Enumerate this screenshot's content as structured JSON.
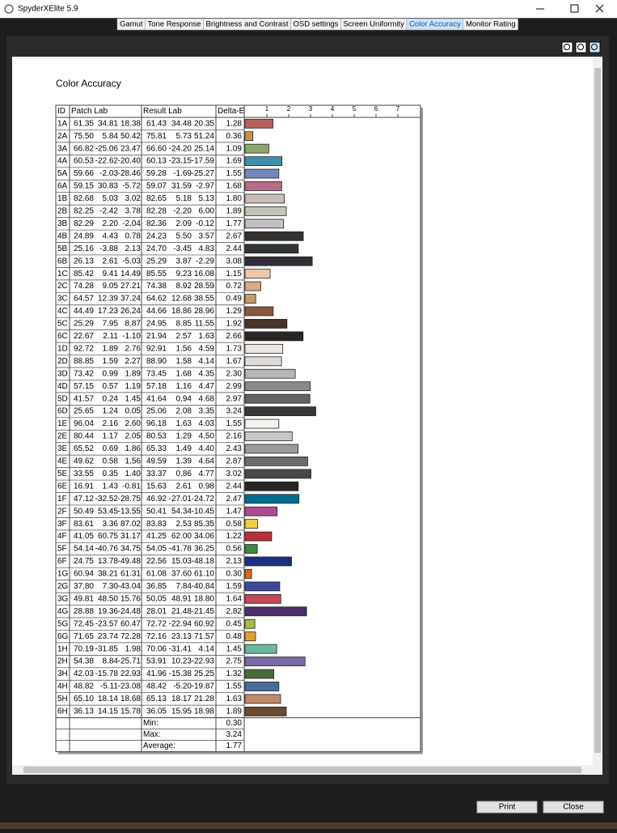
{
  "window": {
    "title": "SpyderXElite 5.9"
  },
  "tabs": [
    "Gamut",
    "Tone Response",
    "Brightness and Contrast",
    "OSD settings",
    "Screen Uniformity",
    "Color Accuracy",
    "Monitor Rating"
  ],
  "active_tab": 5,
  "report": {
    "title": "Color Accuracy"
  },
  "table": {
    "headers": [
      "ID",
      "Patch Lab",
      "Result Lab",
      "Delta-E"
    ],
    "delta_e_ticks": [
      1,
      2,
      3,
      4,
      5,
      6,
      7
    ],
    "rows": [
      [
        "1A",
        [
          "61.35",
          "34.81",
          "18.38"
        ],
        [
          "61.43",
          "34.48",
          "20.35"
        ],
        "1.28"
      ],
      [
        "2A",
        [
          "75.50",
          "5.84",
          "50.42"
        ],
        [
          "75.81",
          "5.73",
          "51.24"
        ],
        "0.36"
      ],
      [
        "3A",
        [
          "66.82",
          "-25.06",
          "23.47"
        ],
        [
          "66.60",
          "-24.20",
          "25.14"
        ],
        "1.09"
      ],
      [
        "4A",
        [
          "60.53",
          "-22.62",
          "-20.40"
        ],
        [
          "60.13",
          "-23.15",
          "-17.59"
        ],
        "1.69"
      ],
      [
        "5A",
        [
          "59.66",
          "-2.03",
          "-28.46"
        ],
        [
          "59.28",
          "-1.69",
          "-25.27"
        ],
        "1.55"
      ],
      [
        "6A",
        [
          "59.15",
          "30.83",
          "-5.72"
        ],
        [
          "59.07",
          "31.59",
          "-2.97"
        ],
        "1.68"
      ],
      [
        "1B",
        [
          "82.68",
          "5.03",
          "3.02"
        ],
        [
          "82.65",
          "5.18",
          "5.13"
        ],
        "1.80"
      ],
      [
        "2B",
        [
          "82.25",
          "-2.42",
          "3.78"
        ],
        [
          "82.28",
          "-2.20",
          "6.00"
        ],
        "1.89"
      ],
      [
        "3B",
        [
          "82.29",
          "2.20",
          "-2.04"
        ],
        [
          "82.36",
          "2.09",
          "-0.12"
        ],
        "1.77"
      ],
      [
        "4B",
        [
          "24.89",
          "4.43",
          "0.78"
        ],
        [
          "24.23",
          "5.50",
          "3.57"
        ],
        "2.67"
      ],
      [
        "5B",
        [
          "25.16",
          "-3.88",
          "2.13"
        ],
        [
          "24.70",
          "-3.45",
          "4.83"
        ],
        "2.44"
      ],
      [
        "6B",
        [
          "26.13",
          "2.61",
          "-5.03"
        ],
        [
          "25.29",
          "3.87",
          "-2.29"
        ],
        "3.08"
      ],
      [
        "1C",
        [
          "85.42",
          "9.41",
          "14.49"
        ],
        [
          "85.55",
          "9.23",
          "16.08"
        ],
        "1.15"
      ],
      [
        "2C",
        [
          "74.28",
          "9.05",
          "27.21"
        ],
        [
          "74.38",
          "8.92",
          "28.59"
        ],
        "0.72"
      ],
      [
        "3C",
        [
          "64.57",
          "12.39",
          "37.24"
        ],
        [
          "64.62",
          "12.68",
          "38.55"
        ],
        "0.49"
      ],
      [
        "4C",
        [
          "44.49",
          "17.23",
          "26.24"
        ],
        [
          "44.66",
          "18.86",
          "28.96"
        ],
        "1.29"
      ],
      [
        "5C",
        [
          "25.29",
          "7.95",
          "8.87"
        ],
        [
          "24.95",
          "8.85",
          "11.55"
        ],
        "1.92"
      ],
      [
        "6C",
        [
          "22.67",
          "2.11",
          "-1.10"
        ],
        [
          "21.94",
          "2.57",
          "1.63"
        ],
        "2.66"
      ],
      [
        "1D",
        [
          "92.72",
          "1.89",
          "2.76"
        ],
        [
          "92.91",
          "1.56",
          "4.59"
        ],
        "1.73"
      ],
      [
        "2D",
        [
          "88.85",
          "1.59",
          "2.27"
        ],
        [
          "88.90",
          "1.58",
          "4.14"
        ],
        "1.67"
      ],
      [
        "3D",
        [
          "73.42",
          "0.99",
          "1.89"
        ],
        [
          "73.45",
          "1.68",
          "4.35"
        ],
        "2.30"
      ],
      [
        "4D",
        [
          "57.15",
          "0.57",
          "1.19"
        ],
        [
          "57.18",
          "1.16",
          "4.47"
        ],
        "2.99"
      ],
      [
        "5D",
        [
          "41.57",
          "0.24",
          "1.45"
        ],
        [
          "41.64",
          "0.94",
          "4.68"
        ],
        "2.97"
      ],
      [
        "6D",
        [
          "25.65",
          "1.24",
          "0.05"
        ],
        [
          "25.06",
          "2.08",
          "3.35"
        ],
        "3.24"
      ],
      [
        "1E",
        [
          "96.04",
          "2.16",
          "2.60"
        ],
        [
          "96.18",
          "1.63",
          "4.03"
        ],
        "1.55"
      ],
      [
        "2E",
        [
          "80.44",
          "1.17",
          "2.05"
        ],
        [
          "80.53",
          "1.29",
          "4.50"
        ],
        "2.16"
      ],
      [
        "3E",
        [
          "65.52",
          "0.69",
          "1.86"
        ],
        [
          "65.33",
          "1.49",
          "4.40"
        ],
        "2.43"
      ],
      [
        "4E",
        [
          "49.62",
          "0.58",
          "1.56"
        ],
        [
          "49.59",
          "1.39",
          "4.64"
        ],
        "2.87"
      ],
      [
        "5E",
        [
          "33.55",
          "0.35",
          "1.40"
        ],
        [
          "33.37",
          "0.86",
          "4.77"
        ],
        "3.02"
      ],
      [
        "6E",
        [
          "16.91",
          "1.43",
          "-0.81"
        ],
        [
          "15.63",
          "2.61",
          "0.98"
        ],
        "2.44"
      ],
      [
        "1F",
        [
          "47.12",
          "-32.52",
          "-28.75"
        ],
        [
          "46.92",
          "-27.01",
          "-24.72"
        ],
        "2.47"
      ],
      [
        "2F",
        [
          "50.49",
          "53.45",
          "-13.55"
        ],
        [
          "50.41",
          "54.34",
          "-10.45"
        ],
        "1.47"
      ],
      [
        "3F",
        [
          "83.61",
          "3.36",
          "87.02"
        ],
        [
          "83.83",
          "2.53",
          "85.35"
        ],
        "0.58"
      ],
      [
        "4F",
        [
          "41.05",
          "60.75",
          "31.17"
        ],
        [
          "41.25",
          "62.00",
          "34.06"
        ],
        "1.22"
      ],
      [
        "5F",
        [
          "54.14",
          "-40.76",
          "34.75"
        ],
        [
          "54.05",
          "-41.78",
          "36.25"
        ],
        "0.56"
      ],
      [
        "6F",
        [
          "24.75",
          "13.78",
          "-49.48"
        ],
        [
          "22.56",
          "15.03",
          "-48.18"
        ],
        "2.13"
      ],
      [
        "1G",
        [
          "60.94",
          "38.21",
          "61.31"
        ],
        [
          "61.08",
          "37.60",
          "61.10"
        ],
        "0.30"
      ],
      [
        "2G",
        [
          "37.80",
          "7.30",
          "-43.04"
        ],
        [
          "36.85",
          "7.84",
          "-40.84"
        ],
        "1.59"
      ],
      [
        "3G",
        [
          "49.81",
          "48.50",
          "15.76"
        ],
        [
          "50.05",
          "48.91",
          "18.80"
        ],
        "1.64"
      ],
      [
        "4G",
        [
          "28.88",
          "19.36",
          "-24.48"
        ],
        [
          "28.01",
          "21.48",
          "-21.45"
        ],
        "2.82"
      ],
      [
        "5G",
        [
          "72.45",
          "-23.57",
          "60.47"
        ],
        [
          "72.72",
          "-22.94",
          "60.92"
        ],
        "0.45"
      ],
      [
        "6G",
        [
          "71.65",
          "23.74",
          "72.28"
        ],
        [
          "72.16",
          "23.13",
          "71.57"
        ],
        "0.48"
      ],
      [
        "1H",
        [
          "70.19",
          "-31.85",
          "1.98"
        ],
        [
          "70.06",
          "-31.41",
          "4.14"
        ],
        "1.45"
      ],
      [
        "2H",
        [
          "54.38",
          "8.84",
          "-25.71"
        ],
        [
          "53.91",
          "10.23",
          "-22.93"
        ],
        "2.75"
      ],
      [
        "3H",
        [
          "42.03",
          "-15.78",
          "22.93"
        ],
        [
          "41.96",
          "-15.38",
          "25.25"
        ],
        "1.32"
      ],
      [
        "4H",
        [
          "48.82",
          "-5.11",
          "-23.08"
        ],
        [
          "48.42",
          "-5.20",
          "-19.87"
        ],
        "1.55"
      ],
      [
        "5H",
        [
          "65.10",
          "18.14",
          "18.68"
        ],
        [
          "65.13",
          "18.17",
          "21.28"
        ],
        "1.63"
      ],
      [
        "6H",
        [
          "36.13",
          "14.15",
          "15.78"
        ],
        [
          "36.05",
          "15.95",
          "18.98"
        ],
        "1.89"
      ]
    ],
    "delta_e": [
      1.28,
      0.36,
      1.09,
      1.69,
      1.55,
      1.68,
      1.8,
      1.89,
      1.77,
      2.67,
      2.44,
      3.08,
      1.15,
      0.72,
      0.49,
      1.29,
      1.92,
      2.66,
      1.73,
      1.67,
      2.3,
      2.99,
      2.97,
      3.24,
      1.55,
      2.16,
      2.43,
      2.87,
      3.02,
      2.44,
      2.47,
      1.47,
      0.58,
      1.22,
      0.56,
      2.13,
      0.3,
      1.59,
      1.64,
      2.82,
      0.45,
      0.48,
      1.45,
      2.75,
      1.32,
      1.55,
      1.63,
      1.89
    ],
    "colors": [
      "#b9605a",
      "#c8914f",
      "#8aa86a",
      "#3e8fa8",
      "#7388b8",
      "#b56a88",
      "#c9bfb8",
      "#c0c4b8",
      "#c2c0c2",
      "#33302e",
      "#2f3530",
      "#302e36",
      "#f0c8a8",
      "#d8a888",
      "#c89a6a",
      "#8a5a3a",
      "#4a3228",
      "#2a2624",
      "#ece6e2",
      "#dedad8",
      "#b8b6b4",
      "#8a8888",
      "#646262",
      "#383636",
      "#f6f2ee",
      "#cac8c6",
      "#9c9a98",
      "#6e6c6a",
      "#4a4846",
      "#262424",
      "#006f8f",
      "#b04a90",
      "#f0d040",
      "#b83038",
      "#3a8a3a",
      "#1a3080",
      "#e06818",
      "#3a4a98",
      "#c04a58",
      "#4a3068",
      "#a0c040",
      "#e0a030",
      "#6ab8a0",
      "#7a6aa8",
      "#4a6a38",
      "#4a6a98",
      "#c08868",
      "#6a4a30"
    ],
    "summary": [
      [
        "Min:",
        "0.30"
      ],
      [
        "Max:",
        "3.24"
      ],
      [
        "Average:",
        "1.77"
      ]
    ]
  },
  "buttons": [
    "Print",
    "Close"
  ]
}
